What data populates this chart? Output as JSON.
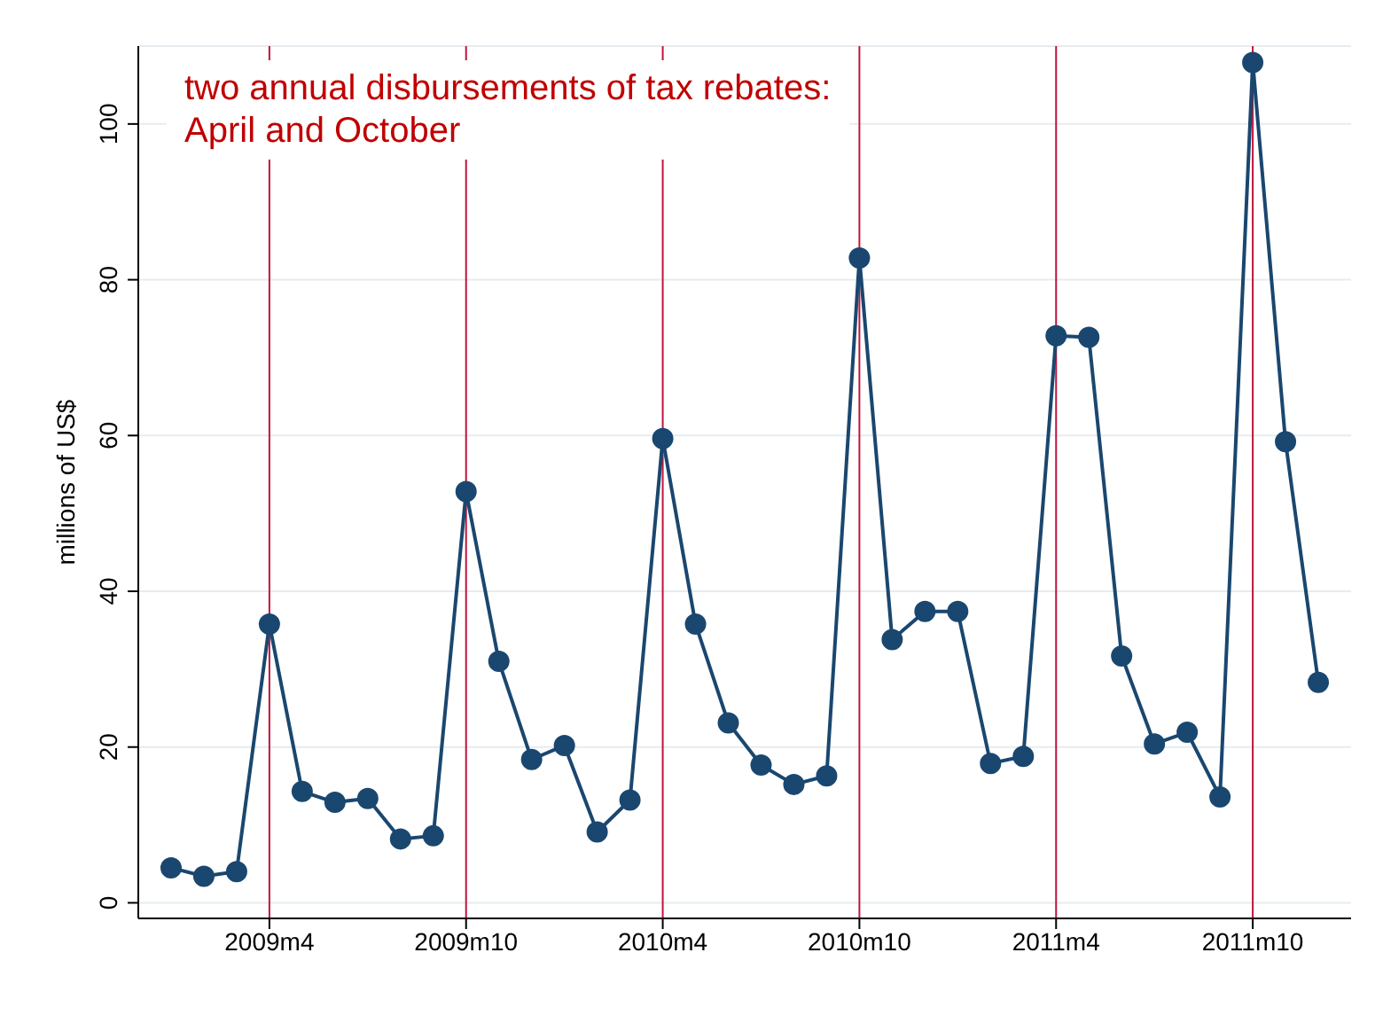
{
  "chart_data": {
    "type": "line",
    "ylabel": "millions of US$",
    "annotations": [
      "two annual disbursements of tax rebates:\nApril and October"
    ],
    "x": [
      "2009-01",
      "2009-02",
      "2009-03",
      "2009-04",
      "2009-05",
      "2009-06",
      "2009-07",
      "2009-08",
      "2009-09",
      "2009-10",
      "2009-11",
      "2009-12",
      "2010-01",
      "2010-02",
      "2010-03",
      "2010-04",
      "2010-05",
      "2010-06",
      "2010-07",
      "2010-08",
      "2010-09",
      "2010-10",
      "2010-11",
      "2010-12",
      "2011-01",
      "2011-02",
      "2011-03",
      "2011-04",
      "2011-05",
      "2011-06",
      "2011-07",
      "2011-08",
      "2011-09",
      "2011-10",
      "2011-11",
      "2011-12"
    ],
    "series": [
      {
        "color": "#1a476f",
        "values": [
          4.5,
          3.4,
          4,
          35.8,
          14.3,
          12.9,
          13.4,
          8.2,
          8.6,
          52.8,
          31,
          18.4,
          20.2,
          9.1,
          13.2,
          59.6,
          35.8,
          23.1,
          17.7,
          15.2,
          16.3,
          82.8,
          33.8,
          37.4,
          37.4,
          17.9,
          18.8,
          72.8,
          72.6,
          31.7,
          20.4,
          21.9,
          13.6,
          107.9,
          59.2,
          28.3
        ]
      }
    ],
    "xlim": [
      "2008-12",
      "2012-01"
    ],
    "ylim": [
      -2,
      110
    ],
    "xticks": [
      {
        "value": "2009-04",
        "label": "2009m4"
      },
      {
        "value": "2009-10",
        "label": "2009m10"
      },
      {
        "value": "2010-04",
        "label": "2010m4"
      },
      {
        "value": "2010-10",
        "label": "2010m10"
      },
      {
        "value": "2011-04",
        "label": "2011m4"
      },
      {
        "value": "2011-10",
        "label": "2011m10"
      }
    ],
    "yticks": [
      0,
      20,
      40,
      60,
      80,
      100
    ],
    "ref_lines": [
      {
        "axis": "x",
        "value": "2009-04",
        "color": "#c0143c"
      },
      {
        "axis": "x",
        "value": "2009-10",
        "color": "#c0143c"
      },
      {
        "axis": "x",
        "value": "2010-04",
        "color": "#c0143c"
      },
      {
        "axis": "x",
        "value": "2010-10",
        "color": "#c0143c"
      },
      {
        "axis": "x",
        "value": "2011-04",
        "color": "#c0143c"
      },
      {
        "axis": "x",
        "value": "2011-10",
        "color": "#c0143c"
      }
    ],
    "grid": "y",
    "marker": "circle",
    "line_style": "solid",
    "legend": false
  }
}
